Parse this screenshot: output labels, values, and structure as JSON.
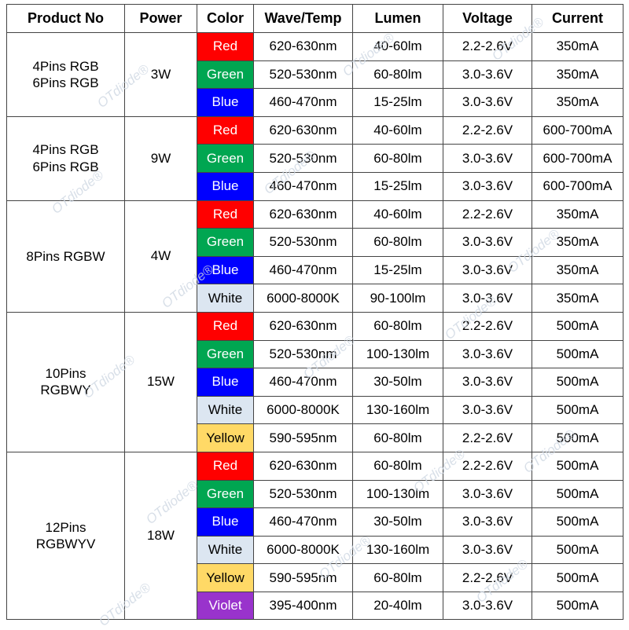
{
  "headers": [
    "Product No",
    "Power",
    "Color",
    "Wave/Temp",
    "Lumen",
    "Voltage",
    "Current"
  ],
  "colors": {
    "Red": "#ff0000",
    "Green": "#00a651",
    "Blue": "#0000ff",
    "White": "#dce6f1",
    "Yellow": "#ffd966",
    "Violet": "#9933cc"
  },
  "watermark": "OTdiode®",
  "groups": [
    {
      "product": [
        "4Pins RGB",
        "6Pins RGB"
      ],
      "power": "3W",
      "rows": [
        {
          "color": "Red",
          "wave": "620-630nm",
          "lumen": "40-60lm",
          "voltage": "2.2-2.6V",
          "current": "350mA"
        },
        {
          "color": "Green",
          "wave": "520-530nm",
          "lumen": "60-80lm",
          "voltage": "3.0-3.6V",
          "current": "350mA"
        },
        {
          "color": "Blue",
          "wave": "460-470nm",
          "lumen": "15-25lm",
          "voltage": "3.0-3.6V",
          "current": "350mA"
        }
      ]
    },
    {
      "product": [
        "4Pins RGB",
        "6Pins RGB"
      ],
      "power": "9W",
      "rows": [
        {
          "color": "Red",
          "wave": "620-630nm",
          "lumen": "40-60lm",
          "voltage": "2.2-2.6V",
          "current": "600-700mA"
        },
        {
          "color": "Green",
          "wave": "520-530nm",
          "lumen": "60-80lm",
          "voltage": "3.0-3.6V",
          "current": "600-700mA"
        },
        {
          "color": "Blue",
          "wave": "460-470nm",
          "lumen": "15-25lm",
          "voltage": "3.0-3.6V",
          "current": "600-700mA"
        }
      ]
    },
    {
      "product": [
        "8Pins RGBW"
      ],
      "power": "4W",
      "rows": [
        {
          "color": "Red",
          "wave": "620-630nm",
          "lumen": "40-60lm",
          "voltage": "2.2-2.6V",
          "current": "350mA"
        },
        {
          "color": "Green",
          "wave": "520-530nm",
          "lumen": "60-80lm",
          "voltage": "3.0-3.6V",
          "current": "350mA"
        },
        {
          "color": "Blue",
          "wave": "460-470nm",
          "lumen": "15-25lm",
          "voltage": "3.0-3.6V",
          "current": "350mA"
        },
        {
          "color": "White",
          "wave": "6000-8000K",
          "lumen": "90-100lm",
          "voltage": "3.0-3.6V",
          "current": "350mA"
        }
      ]
    },
    {
      "product": [
        "10Pins",
        "RGBWY"
      ],
      "power": "15W",
      "rows": [
        {
          "color": "Red",
          "wave": "620-630nm",
          "lumen": "60-80lm",
          "voltage": "2.2-2.6V",
          "current": "500mA"
        },
        {
          "color": "Green",
          "wave": "520-530nm",
          "lumen": "100-130lm",
          "voltage": "3.0-3.6V",
          "current": "500mA"
        },
        {
          "color": "Blue",
          "wave": "460-470nm",
          "lumen": "30-50lm",
          "voltage": "3.0-3.6V",
          "current": "500mA"
        },
        {
          "color": "White",
          "wave": "6000-8000K",
          "lumen": "130-160lm",
          "voltage": "3.0-3.6V",
          "current": "500mA"
        },
        {
          "color": "Yellow",
          "wave": "590-595nm",
          "lumen": "60-80lm",
          "voltage": "2.2-2.6V",
          "current": "500mA"
        }
      ]
    },
    {
      "product": [
        "12Pins",
        "RGBWYV"
      ],
      "power": "18W",
      "rows": [
        {
          "color": "Red",
          "wave": "620-630nm",
          "lumen": "60-80lm",
          "voltage": "2.2-2.6V",
          "current": "500mA"
        },
        {
          "color": "Green",
          "wave": "520-530nm",
          "lumen": "100-130lm",
          "voltage": "3.0-3.6V",
          "current": "500mA"
        },
        {
          "color": "Blue",
          "wave": "460-470nm",
          "lumen": "30-50lm",
          "voltage": "3.0-3.6V",
          "current": "500mA"
        },
        {
          "color": "White",
          "wave": "6000-8000K",
          "lumen": "130-160lm",
          "voltage": "3.0-3.6V",
          "current": "500mA"
        },
        {
          "color": "Yellow",
          "wave": "590-595nm",
          "lumen": "60-80lm",
          "voltage": "2.2-2.6V",
          "current": "500mA"
        },
        {
          "color": "Violet",
          "wave": "395-400nm",
          "lumen": "20-40lm",
          "voltage": "3.0-3.6V",
          "current": "500mA"
        }
      ]
    }
  ]
}
